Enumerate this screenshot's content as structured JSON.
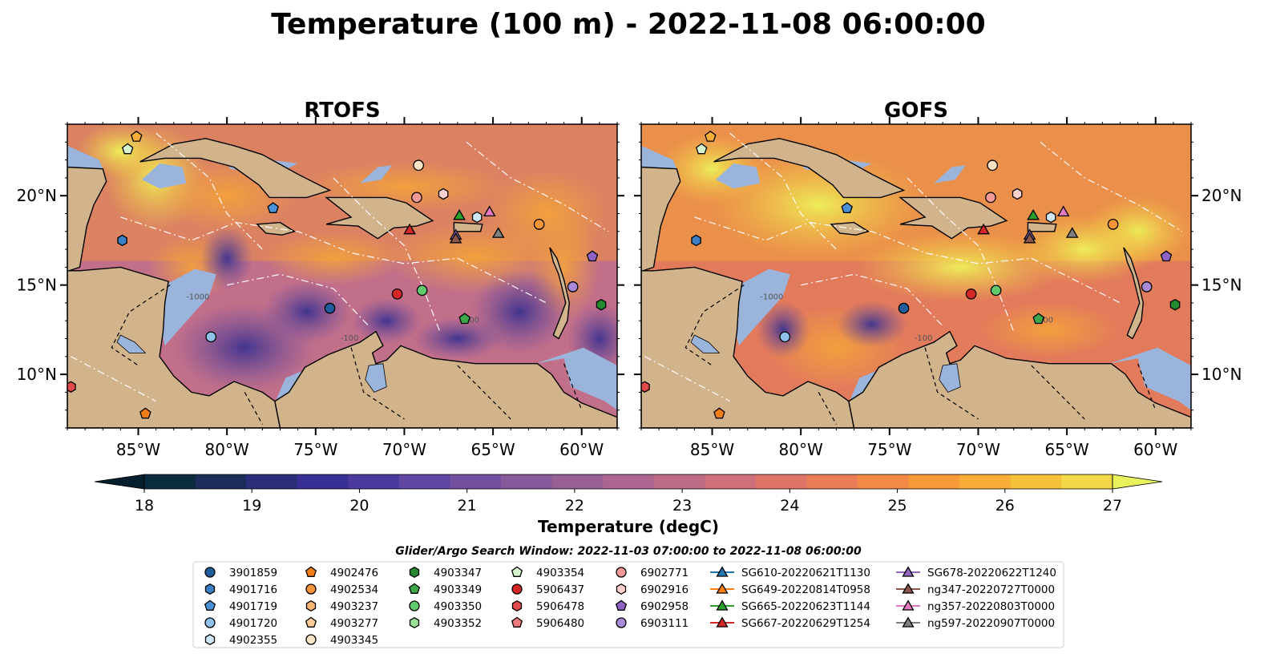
{
  "title": "Temperature (100 m) - 2022-11-08 06:00:00",
  "panels": [
    {
      "title": "RTOFS",
      "id": "rtofs"
    },
    {
      "title": "GOFS",
      "id": "gofs"
    }
  ],
  "map": {
    "lon_range": [
      -89,
      -58
    ],
    "lat_range": [
      7,
      24
    ],
    "lon_ticks": [
      {
        "value": -85,
        "label": "85°W"
      },
      {
        "value": -80,
        "label": "80°W"
      },
      {
        "value": -75,
        "label": "75°W"
      },
      {
        "value": -70,
        "label": "70°W"
      },
      {
        "value": -65,
        "label": "65°W"
      },
      {
        "value": -60,
        "label": "60°W"
      }
    ],
    "lat_ticks": [
      {
        "value": 10,
        "label": "10°N"
      },
      {
        "value": 15,
        "label": "15°N"
      },
      {
        "value": 20,
        "label": "20°N"
      }
    ],
    "land_color": "#d2b48c",
    "shelf_color": "#9ab4dc",
    "contour_labels": [
      "-100",
      "-1000",
      "-200"
    ]
  },
  "colorbar": {
    "label": "Temperature (degC)",
    "min": 18,
    "max": 27,
    "ticks": [
      {
        "value": 18,
        "label": "18"
      },
      {
        "value": 19,
        "label": "19"
      },
      {
        "value": 20,
        "label": "20"
      },
      {
        "value": 21,
        "label": "21"
      },
      {
        "value": 22,
        "label": "22"
      },
      {
        "value": 23,
        "label": "23"
      },
      {
        "value": 24,
        "label": "24"
      },
      {
        "value": 25,
        "label": "25"
      },
      {
        "value": 26,
        "label": "26"
      },
      {
        "value": 27,
        "label": "27"
      }
    ],
    "colors": [
      "#04202e",
      "#0a2a3e",
      "#1b2c5a",
      "#2a2d7a",
      "#382f94",
      "#4a3aa0",
      "#5e46a2",
      "#72509f",
      "#86599a",
      "#985f95",
      "#ab658e",
      "#bd6a85",
      "#cf6f79",
      "#de7568",
      "#ea7d55",
      "#f28a45",
      "#f69a3a",
      "#f8ad36",
      "#f6c23a",
      "#f2d846",
      "#e9f25c"
    ]
  },
  "legend": {
    "title": "Glider/Argo Search Window: 2022-11-03 07:00:00 to 2022-11-08 06:00:00",
    "columns": [
      [
        {
          "label": "3901859",
          "marker": "circle",
          "color": "#1f5d9f"
        },
        {
          "label": "4901716",
          "marker": "hexagon",
          "color": "#3b7fc4"
        },
        {
          "label": "4901719",
          "marker": "pentagon",
          "color": "#4a91d8"
        },
        {
          "label": "4901720",
          "marker": "circle",
          "color": "#8fc1ea"
        },
        {
          "label": "4902355",
          "marker": "hexagon",
          "color": "#cfe6f8"
        }
      ],
      [
        {
          "label": "4902476",
          "marker": "pentagon",
          "color": "#f07d16"
        },
        {
          "label": "4902534",
          "marker": "circle",
          "color": "#f49438"
        },
        {
          "label": "4903237",
          "marker": "hexagon",
          "color": "#f7b370"
        },
        {
          "label": "4903277",
          "marker": "pentagon",
          "color": "#fbcc99"
        },
        {
          "label": "4903345",
          "marker": "circle",
          "color": "#fde3c5"
        }
      ],
      [
        {
          "label": "4903347",
          "marker": "hexagon",
          "color": "#238b2e"
        },
        {
          "label": "4903349",
          "marker": "pentagon",
          "color": "#3da84a"
        },
        {
          "label": "4903350",
          "marker": "circle",
          "color": "#62c96c"
        },
        {
          "label": "4903352",
          "marker": "hexagon",
          "color": "#9ce09a"
        }
      ],
      [
        {
          "label": "4903354",
          "marker": "pentagon",
          "color": "#d6f5cf"
        },
        {
          "label": "5906437",
          "marker": "circle",
          "color": "#d62728"
        },
        {
          "label": "5906478",
          "marker": "hexagon",
          "color": "#e14a4a"
        },
        {
          "label": "5906480",
          "marker": "pentagon",
          "color": "#ee7b7b"
        }
      ],
      [
        {
          "label": "6902771",
          "marker": "circle",
          "color": "#f39a96"
        },
        {
          "label": "6902916",
          "marker": "hexagon",
          "color": "#fbd0cf"
        },
        {
          "label": "6902958",
          "marker": "pentagon",
          "color": "#8f62c4"
        },
        {
          "label": "6903111",
          "marker": "circle",
          "color": "#a98ad6"
        }
      ],
      [
        {
          "label": "SG610-20220621T1130",
          "marker": "triangle",
          "color": "#1f77b4",
          "line": true
        },
        {
          "label": "SG649-20220814T0958",
          "marker": "triangle",
          "color": "#ff7f0e",
          "line": true
        },
        {
          "label": "SG665-20220623T1144",
          "marker": "triangle",
          "color": "#2ca02c",
          "line": true
        },
        {
          "label": "SG667-20220629T1254",
          "marker": "triangle",
          "color": "#d62728",
          "line": true
        }
      ],
      [
        {
          "label": "SG678-20220622T1240",
          "marker": "triangle",
          "color": "#9467bd",
          "line": true
        },
        {
          "label": "ng347-20220727T0000",
          "marker": "triangle",
          "color": "#8c564b",
          "line": true
        },
        {
          "label": "ng357-20220803T0000",
          "marker": "triangle",
          "color": "#e377c2",
          "line": true
        },
        {
          "label": "ng597-20220907T0000",
          "marker": "triangle",
          "color": "#7f7f7f",
          "line": true
        }
      ]
    ]
  },
  "observations": [
    {
      "lon": -85.1,
      "lat": 23.3,
      "marker": "pentagon",
      "color": "#f8ad36"
    },
    {
      "lon": -85.6,
      "lat": 22.6,
      "marker": "pentagon",
      "color": "#d6f5cf"
    },
    {
      "lon": -85.9,
      "lat": 17.5,
      "marker": "hexagon",
      "color": "#3b7fc4"
    },
    {
      "lon": -77.4,
      "lat": 19.3,
      "marker": "pentagon",
      "color": "#4a91d8"
    },
    {
      "lon": -80.9,
      "lat": 12.1,
      "marker": "circle",
      "color": "#8fc1ea"
    },
    {
      "lon": -74.2,
      "lat": 13.7,
      "marker": "circle",
      "color": "#1f5d9f"
    },
    {
      "lon": -70.4,
      "lat": 14.5,
      "marker": "circle",
      "color": "#d62728"
    },
    {
      "lon": -69.0,
      "lat": 14.7,
      "marker": "circle",
      "color": "#62c96c"
    },
    {
      "lon": -66.6,
      "lat": 13.1,
      "marker": "pentagon",
      "color": "#3da84a"
    },
    {
      "lon": -69.2,
      "lat": 21.7,
      "marker": "circle",
      "color": "#fde3c5"
    },
    {
      "lon": -69.3,
      "lat": 19.9,
      "marker": "circle",
      "color": "#f39a96"
    },
    {
      "lon": -67.8,
      "lat": 20.1,
      "marker": "hexagon",
      "color": "#fbd0cf"
    },
    {
      "lon": -62.4,
      "lat": 18.4,
      "marker": "circle",
      "color": "#f49438"
    },
    {
      "lon": -60.5,
      "lat": 14.9,
      "marker": "circle",
      "color": "#a98ad6"
    },
    {
      "lon": -59.4,
      "lat": 16.6,
      "marker": "pentagon",
      "color": "#8f62c4"
    },
    {
      "lon": -58.9,
      "lat": 13.9,
      "marker": "hexagon",
      "color": "#238b2e"
    },
    {
      "lon": -88.8,
      "lat": 9.3,
      "marker": "hexagon",
      "color": "#e14a4a"
    },
    {
      "lon": -84.6,
      "lat": 7.8,
      "marker": "pentagon",
      "color": "#f07d16"
    },
    {
      "lon": -66.9,
      "lat": 18.9,
      "marker": "triangle",
      "color": "#2ca02c"
    },
    {
      "lon": -65.2,
      "lat": 19.1,
      "marker": "triangle",
      "color": "#e377c2"
    },
    {
      "lon": -65.9,
      "lat": 18.8,
      "marker": "hexagon",
      "color": "#cfe6f8"
    },
    {
      "lon": -67.1,
      "lat": 17.8,
      "marker": "triangle",
      "color": "#9467bd"
    },
    {
      "lon": -67.1,
      "lat": 17.6,
      "marker": "triangle",
      "color": "#8c564b"
    },
    {
      "lon": -64.7,
      "lat": 17.9,
      "marker": "triangle",
      "color": "#7f7f7f"
    },
    {
      "lon": -69.7,
      "lat": 18.1,
      "marker": "triangle",
      "color": "#d62728"
    }
  ]
}
